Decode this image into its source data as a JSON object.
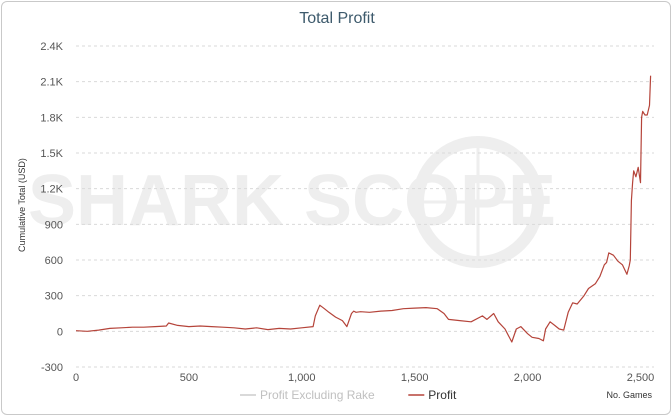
{
  "chart_data": {
    "type": "line",
    "title": "Total Profit",
    "ylabel": "Cumulative Total (USD)",
    "xlabel": "No. Games",
    "xlim": [
      0,
      2560
    ],
    "ylim": [
      -300,
      2400
    ],
    "x_ticks": [
      0,
      500,
      1000,
      1500,
      2000,
      2500
    ],
    "x_tick_labels": [
      "0",
      "500",
      "1,000",
      "1,500",
      "2,000",
      "2,500"
    ],
    "y_ticks": [
      -300,
      0,
      300,
      600,
      900,
      1200,
      1500,
      1800,
      2100,
      2400
    ],
    "y_tick_labels": [
      "-300",
      "0",
      "300",
      "600",
      "900",
      "1.2K",
      "1.5K",
      "1.8K",
      "2.1K",
      "2.4K"
    ],
    "grid": true,
    "legend_position": "bottom",
    "watermark": "SHARK SCOPE",
    "series": [
      {
        "name": "Profit Excluding Rake",
        "color": "#cccccc",
        "x": [],
        "y": []
      },
      {
        "name": "Profit",
        "color": "#b5443a",
        "x": [
          0,
          50,
          100,
          150,
          200,
          250,
          300,
          350,
          400,
          410,
          450,
          500,
          550,
          600,
          650,
          700,
          750,
          800,
          850,
          900,
          950,
          1000,
          1050,
          1060,
          1080,
          1100,
          1120,
          1150,
          1180,
          1200,
          1220,
          1230,
          1240,
          1260,
          1300,
          1350,
          1400,
          1450,
          1500,
          1550,
          1600,
          1630,
          1650,
          1700,
          1750,
          1800,
          1820,
          1850,
          1870,
          1900,
          1930,
          1950,
          1970,
          2000,
          2020,
          2050,
          2070,
          2080,
          2100,
          2120,
          2140,
          2160,
          2180,
          2200,
          2220,
          2250,
          2270,
          2300,
          2320,
          2340,
          2350,
          2360,
          2380,
          2400,
          2420,
          2440,
          2450,
          2455,
          2460,
          2465,
          2470,
          2480,
          2490,
          2500,
          2505,
          2510,
          2520,
          2530,
          2540,
          2545
        ],
        "y": [
          5,
          0,
          10,
          25,
          30,
          35,
          35,
          40,
          45,
          70,
          50,
          40,
          45,
          40,
          35,
          30,
          20,
          30,
          15,
          25,
          20,
          30,
          40,
          130,
          220,
          190,
          160,
          120,
          90,
          40,
          150,
          170,
          160,
          165,
          160,
          170,
          175,
          190,
          195,
          200,
          190,
          150,
          100,
          90,
          80,
          130,
          100,
          150,
          80,
          20,
          -90,
          20,
          40,
          -20,
          -50,
          -60,
          -80,
          20,
          80,
          50,
          20,
          10,
          160,
          240,
          230,
          300,
          360,
          400,
          460,
          560,
          580,
          660,
          640,
          590,
          560,
          480,
          550,
          600,
          1100,
          1250,
          1350,
          1300,
          1380,
          1250,
          1800,
          1850,
          1820,
          1820,
          1900,
          2150
        ]
      }
    ]
  }
}
